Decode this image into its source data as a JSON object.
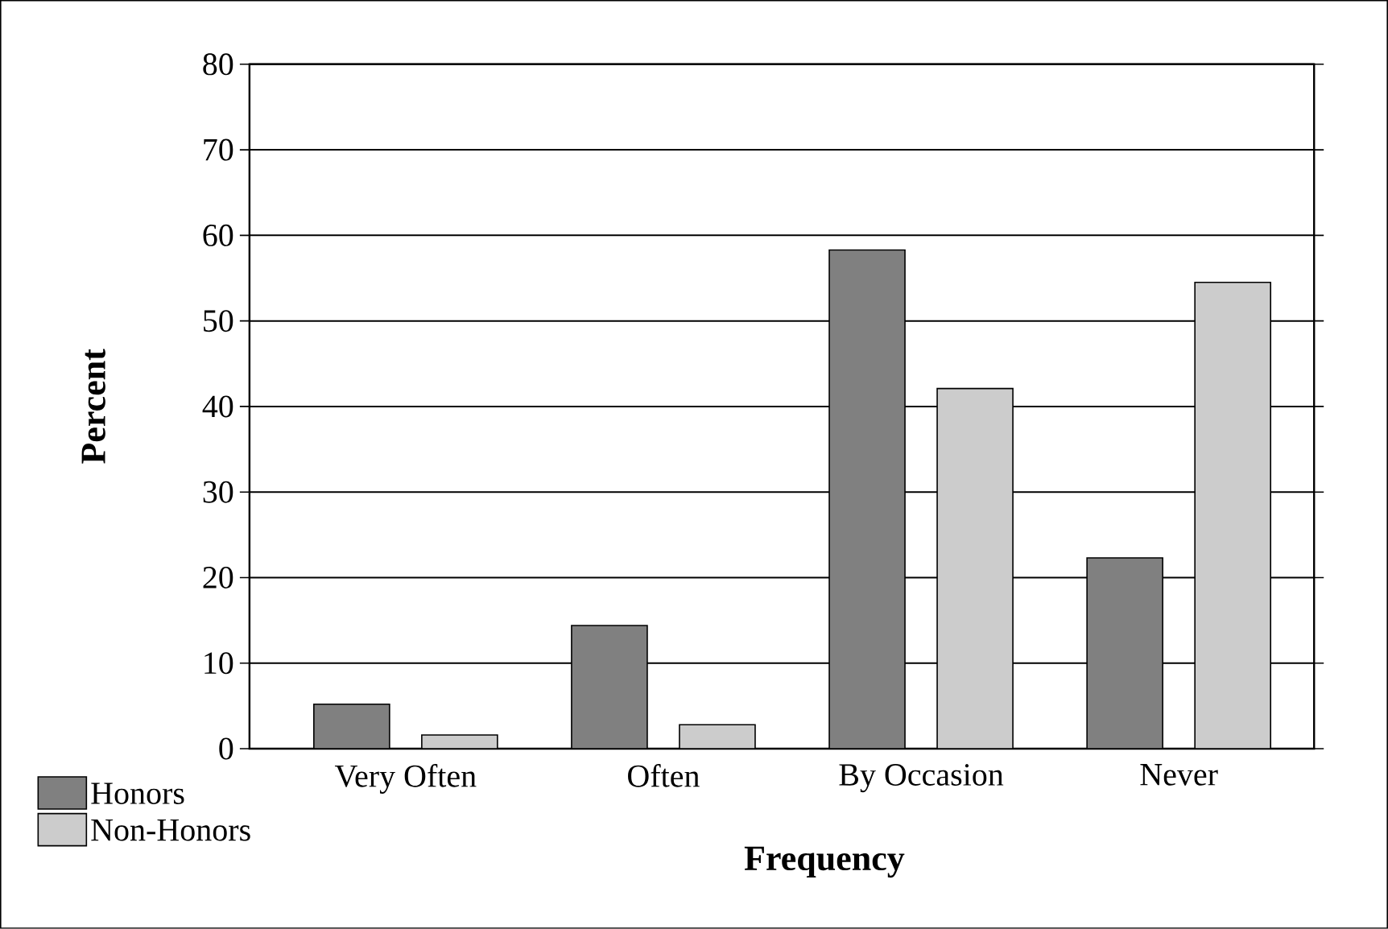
{
  "chart_data": {
    "type": "bar",
    "xlabel": "Frequency",
    "ylabel": "Percent",
    "categories": [
      "Very Often",
      "Often",
      "By Occasion",
      "Never"
    ],
    "series": [
      {
        "name": "Honors",
        "color": "#808080",
        "values": [
          5.2,
          14.4,
          58.3,
          22.3
        ]
      },
      {
        "name": "Non-Honors",
        "color": "#cccccc",
        "values": [
          1.6,
          2.8,
          42.1,
          54.5
        ]
      }
    ],
    "ylim": [
      0,
      80
    ],
    "yticks": [
      0,
      10,
      20,
      30,
      40,
      50,
      60,
      70,
      80
    ],
    "grid": "y",
    "legend": "bottom left"
  }
}
